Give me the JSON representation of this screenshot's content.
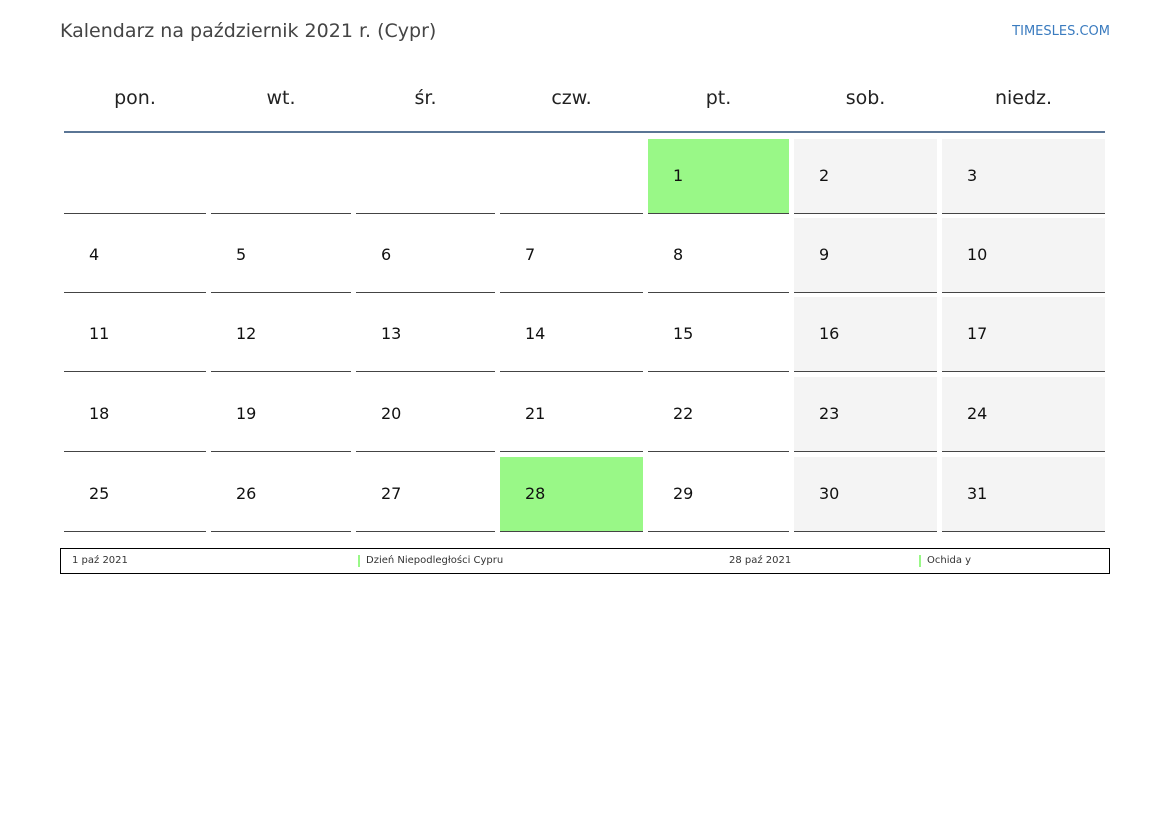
{
  "header": {
    "title": "Kalendarz na październik 2021 r. (Cypr)",
    "brand": "TIMESLES.COM"
  },
  "calendar": {
    "weekdays": [
      "pon.",
      "wt.",
      "śr.",
      "czw.",
      "pt.",
      "sob.",
      "niedz."
    ],
    "weeks": [
      [
        null,
        null,
        null,
        null,
        1,
        2,
        3
      ],
      [
        4,
        5,
        6,
        7,
        8,
        9,
        10
      ],
      [
        11,
        12,
        13,
        14,
        15,
        16,
        17
      ],
      [
        18,
        19,
        20,
        21,
        22,
        23,
        24
      ],
      [
        25,
        26,
        27,
        28,
        29,
        30,
        31
      ]
    ],
    "highlight_color": "#99f887"
  },
  "legend": {
    "items": [
      {
        "date": "1 paź 2021",
        "name": "Dzień Niepodległości Cypru",
        "day": 1
      },
      {
        "date": "28 paź 2021",
        "name": "Ochida y",
        "day": 28
      }
    ]
  }
}
